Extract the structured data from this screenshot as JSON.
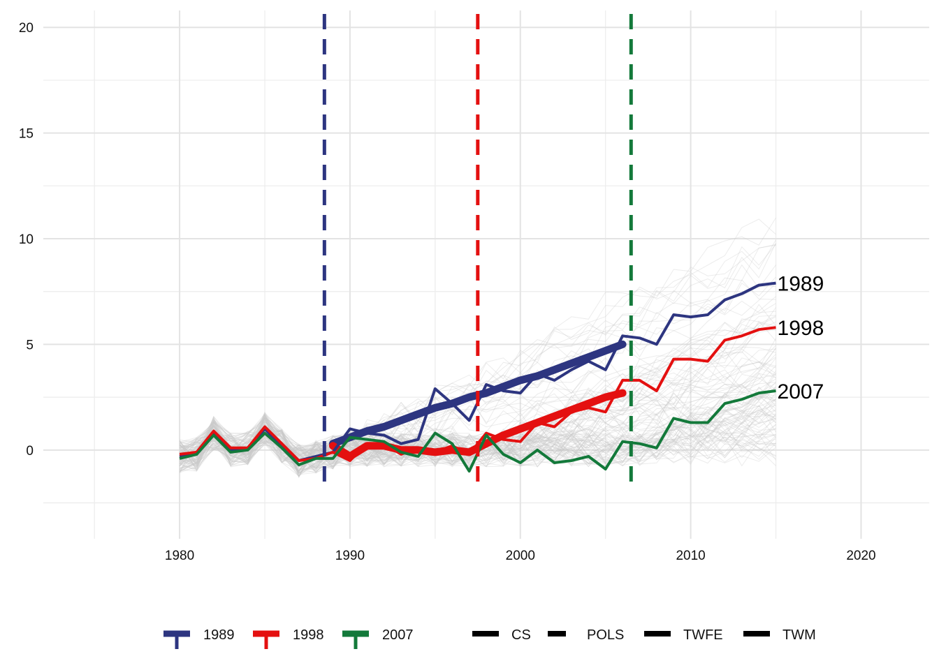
{
  "chart_data": {
    "type": "line",
    "title": "",
    "xlabel": "",
    "ylabel": "",
    "xlim": [
      1972,
      2024
    ],
    "ylim": [
      -4.2,
      20.8
    ],
    "x_ticks": [
      1980,
      1990,
      2000,
      2010,
      2020
    ],
    "y_ticks": [
      0,
      5,
      10,
      15,
      20
    ],
    "grid": true,
    "legend_position": "bottom",
    "colors": {
      "c1989": "#2d3580",
      "c1998": "#e41010",
      "c2007": "#13793a",
      "background_lines": "#c8c8c8"
    },
    "background_series_note_count": 0,
    "series": [
      {
        "name": "1989",
        "color": "#2d3580",
        "x": [
          1980,
          1981,
          1982,
          1983,
          1984,
          1985,
          1986,
          1987,
          1988,
          1989,
          1990,
          1991,
          1992,
          1993,
          1994,
          1995,
          1996,
          1997,
          1998,
          1999,
          2000,
          2001,
          2002,
          2003,
          2004,
          2005,
          2006,
          2007,
          2008,
          2009,
          2010,
          2011,
          2012,
          2013,
          2014,
          2015
        ],
        "values": [
          -0.3,
          -0.2,
          0.8,
          0.0,
          0.1,
          1.0,
          0.2,
          -0.5,
          -0.3,
          -0.1,
          1.0,
          0.8,
          0.7,
          0.3,
          0.5,
          2.9,
          2.2,
          1.4,
          3.1,
          2.8,
          2.7,
          3.6,
          3.3,
          3.8,
          4.2,
          3.8,
          5.4,
          5.3,
          5.0,
          6.4,
          6.3,
          6.4,
          7.1,
          7.4,
          7.8,
          7.9
        ]
      },
      {
        "name": "1998",
        "color": "#e41010",
        "x": [
          1980,
          1981,
          1982,
          1983,
          1984,
          1985,
          1986,
          1987,
          1988,
          1989,
          1990,
          1991,
          1992,
          1993,
          1994,
          1995,
          1996,
          1997,
          1998,
          1999,
          2000,
          2001,
          2002,
          2003,
          2004,
          2005,
          2006,
          2007,
          2008,
          2009,
          2010,
          2011,
          2012,
          2013,
          2014,
          2015
        ],
        "values": [
          -0.2,
          -0.1,
          0.9,
          0.1,
          0.1,
          1.1,
          0.3,
          -0.5,
          -0.4,
          -0.1,
          -0.5,
          0.3,
          0.3,
          -0.2,
          0.1,
          -0.1,
          0.2,
          -0.2,
          0.8,
          0.5,
          0.4,
          1.3,
          1.1,
          1.8,
          2.0,
          1.8,
          3.3,
          3.3,
          2.8,
          4.3,
          4.3,
          4.2,
          5.2,
          5.4,
          5.7,
          5.8
        ]
      },
      {
        "name": "2007",
        "color": "#13793a",
        "x": [
          1980,
          1981,
          1982,
          1983,
          1984,
          1985,
          1986,
          1987,
          1988,
          1989,
          1990,
          1991,
          1992,
          1993,
          1994,
          1995,
          1996,
          1997,
          1998,
          1999,
          2000,
          2001,
          2002,
          2003,
          2004,
          2005,
          2006,
          2007,
          2008,
          2009,
          2010,
          2011,
          2012,
          2013,
          2014,
          2015
        ],
        "values": [
          -0.4,
          -0.2,
          0.7,
          -0.1,
          0.0,
          0.8,
          0.1,
          -0.7,
          -0.4,
          -0.4,
          0.6,
          0.5,
          0.4,
          -0.1,
          -0.3,
          0.8,
          0.3,
          -1.0,
          0.7,
          -0.2,
          -0.6,
          0.0,
          -0.6,
          -0.5,
          -0.3,
          -0.9,
          0.4,
          0.3,
          0.1,
          1.5,
          1.3,
          1.3,
          2.2,
          2.4,
          2.7,
          2.8
        ]
      }
    ],
    "estimates": [
      {
        "cohort": "1989",
        "x": [
          1989,
          1990,
          1991,
          1992,
          1993,
          1994,
          1995,
          1996,
          1997,
          1998,
          1999,
          2000,
          2001,
          2002,
          2003,
          2004,
          2005,
          2006
        ],
        "values": [
          0.3,
          0.6,
          0.9,
          1.1,
          1.4,
          1.7,
          2.0,
          2.2,
          2.5,
          2.7,
          3.0,
          3.3,
          3.5,
          3.8,
          4.1,
          4.4,
          4.7,
          5.0
        ]
      },
      {
        "cohort": "1998",
        "x": [
          1989,
          1990,
          1991,
          1992,
          1993,
          1994,
          1995,
          1996,
          1997,
          1998,
          1999,
          2000,
          2001,
          2002,
          2003,
          2004,
          2005,
          2006
        ],
        "values": [
          0.2,
          -0.3,
          0.2,
          0.2,
          0.0,
          0.0,
          -0.1,
          0.0,
          -0.1,
          0.3,
          0.7,
          1.0,
          1.3,
          1.6,
          1.9,
          2.2,
          2.5,
          2.7
        ]
      }
    ],
    "vlines": [
      {
        "x": 1988.5,
        "color": "#2d3580"
      },
      {
        "x": 1997.5,
        "color": "#e41010"
      },
      {
        "x": 2006.5,
        "color": "#13793a"
      }
    ],
    "end_labels": [
      "1989",
      "1998",
      "2007"
    ],
    "legend": {
      "cohorts": [
        {
          "label": "1989",
          "color": "#2d3580"
        },
        {
          "label": "1998",
          "color": "#e41010"
        },
        {
          "label": "2007",
          "color": "#13793a"
        }
      ],
      "methods": [
        {
          "label": "CS",
          "dash": "solid"
        },
        {
          "label": "POLS",
          "dash": "dashed"
        },
        {
          "label": "TWFE",
          "dash": "solid"
        },
        {
          "label": "TWM",
          "dash": "solid"
        }
      ]
    }
  }
}
